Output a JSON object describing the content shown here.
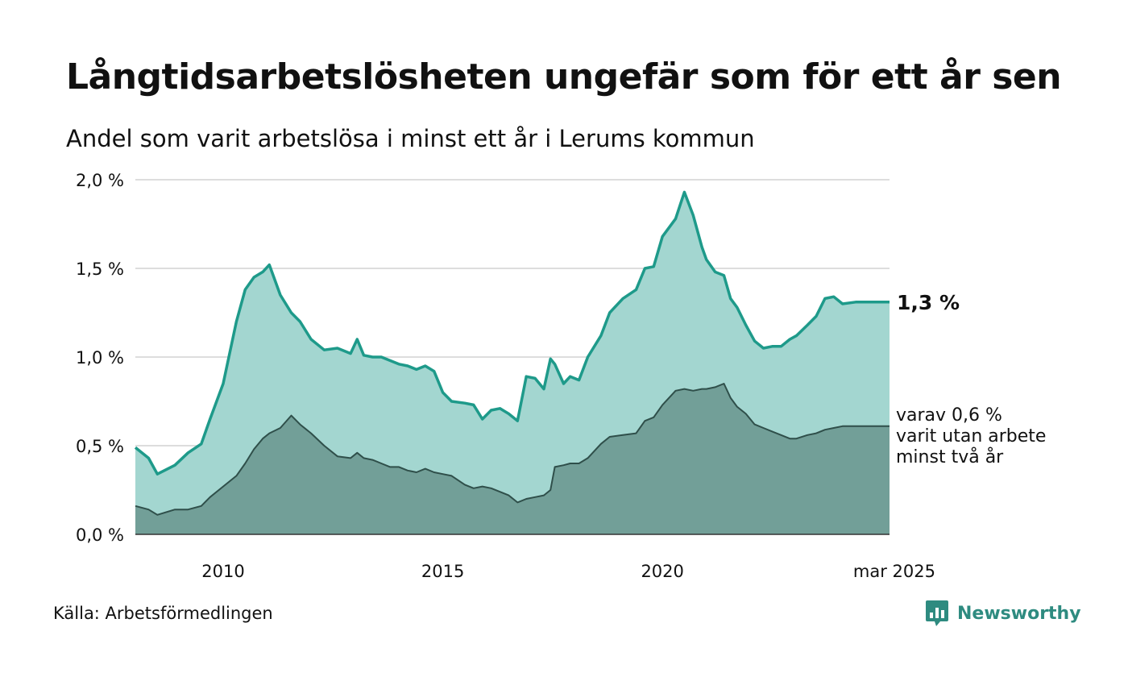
{
  "title": "Långtidsarbetslösheten ungefär som för ett år sen",
  "subtitle": "Andel som varit arbetslösa i minst ett år i Lerums kommun",
  "source": "Källa: Arbetsförmedlingen",
  "brand": {
    "name": "Newsworthy",
    "icon": "newsworthy-logo-icon"
  },
  "colors": {
    "area_total": "#a3d6d0",
    "line_total": "#1e9a8a",
    "area_two_years": "#729f98",
    "line_two_years": "#2f4f4a",
    "grid": "#dddddd",
    "brand": "#2e8b80"
  },
  "chart_data": {
    "type": "area",
    "x_range": [
      2008.0,
      2025.17
    ],
    "ylim": [
      0,
      2.0
    ],
    "y_ticks": [
      0,
      0.5,
      1.0,
      1.5,
      2.0
    ],
    "y_tick_labels": [
      "0,0 %",
      "0,5 %",
      "1,0 %",
      "1,5 %",
      "2,0 %"
    ],
    "x_ticks": [
      2010,
      2015,
      2020,
      2025.17
    ],
    "x_tick_labels": [
      "2010",
      "2015",
      "2020",
      "mar 2025"
    ],
    "grid": true,
    "annotations": {
      "total_end": "1,3 %",
      "two_years_line1": "varav 0,6 %",
      "two_years_line2": "varit utan arbete",
      "two_years_line3": "minst två år"
    },
    "series": [
      {
        "key": "total",
        "x": [
          2008.0,
          2008.3,
          2008.5,
          2008.9,
          2009.2,
          2009.5,
          2009.7,
          2010.0,
          2010.3,
          2010.5,
          2010.7,
          2010.9,
          2011.05,
          2011.3,
          2011.55,
          2011.75,
          2012.0,
          2012.3,
          2012.6,
          2012.9,
          2013.05,
          2013.2,
          2013.4,
          2013.6,
          2013.8,
          2014.0,
          2014.2,
          2014.4,
          2014.6,
          2014.8,
          2015.0,
          2015.2,
          2015.5,
          2015.7,
          2015.9,
          2016.1,
          2016.3,
          2016.5,
          2016.7,
          2016.9,
          2017.1,
          2017.3,
          2017.45,
          2017.55,
          2017.75,
          2017.9,
          2018.1,
          2018.3,
          2018.6,
          2018.8,
          2019.1,
          2019.4,
          2019.6,
          2019.8,
          2020.0,
          2020.3,
          2020.5,
          2020.7,
          2020.9,
          2021.0,
          2021.2,
          2021.4,
          2021.55,
          2021.7,
          2021.9,
          2022.1,
          2022.3,
          2022.5,
          2022.7,
          2022.9,
          2023.05,
          2023.3,
          2023.5,
          2023.7,
          2023.9,
          2024.1,
          2024.4,
          2024.6,
          2024.8,
          2024.95,
          2025.05,
          2025.17
        ],
        "values": [
          0.49,
          0.43,
          0.34,
          0.39,
          0.46,
          0.51,
          0.65,
          0.85,
          1.2,
          1.38,
          1.45,
          1.48,
          1.52,
          1.35,
          1.25,
          1.2,
          1.1,
          1.04,
          1.05,
          1.02,
          1.1,
          1.01,
          1.0,
          1.0,
          0.98,
          0.96,
          0.95,
          0.93,
          0.95,
          0.92,
          0.8,
          0.75,
          0.74,
          0.73,
          0.65,
          0.7,
          0.71,
          0.68,
          0.64,
          0.89,
          0.88,
          0.82,
          0.99,
          0.96,
          0.85,
          0.89,
          0.87,
          1.0,
          1.12,
          1.25,
          1.33,
          1.38,
          1.5,
          1.51,
          1.68,
          1.78,
          1.93,
          1.8,
          1.62,
          1.55,
          1.48,
          1.46,
          1.33,
          1.28,
          1.18,
          1.09,
          1.05,
          1.06,
          1.06,
          1.1,
          1.12,
          1.18,
          1.23,
          1.33,
          1.34,
          1.3,
          1.31,
          1.31,
          1.31,
          1.31,
          1.31,
          1.31
        ]
      },
      {
        "key": "two_years",
        "x": [
          2008.0,
          2008.3,
          2008.5,
          2008.9,
          2009.2,
          2009.5,
          2009.7,
          2010.0,
          2010.3,
          2010.5,
          2010.7,
          2010.9,
          2011.05,
          2011.3,
          2011.55,
          2011.75,
          2012.0,
          2012.3,
          2012.6,
          2012.9,
          2013.05,
          2013.2,
          2013.4,
          2013.6,
          2013.8,
          2014.0,
          2014.2,
          2014.4,
          2014.6,
          2014.8,
          2015.0,
          2015.2,
          2015.5,
          2015.7,
          2015.9,
          2016.1,
          2016.3,
          2016.5,
          2016.7,
          2016.9,
          2017.1,
          2017.3,
          2017.45,
          2017.55,
          2017.75,
          2017.9,
          2018.1,
          2018.3,
          2018.6,
          2018.8,
          2019.1,
          2019.4,
          2019.6,
          2019.8,
          2020.0,
          2020.3,
          2020.5,
          2020.7,
          2020.9,
          2021.0,
          2021.2,
          2021.4,
          2021.55,
          2021.7,
          2021.9,
          2022.1,
          2022.3,
          2022.5,
          2022.7,
          2022.9,
          2023.05,
          2023.3,
          2023.5,
          2023.7,
          2023.9,
          2024.1,
          2024.4,
          2024.6,
          2024.8,
          2024.95,
          2025.05,
          2025.17
        ],
        "values": [
          0.16,
          0.14,
          0.11,
          0.14,
          0.14,
          0.16,
          0.21,
          0.27,
          0.33,
          0.4,
          0.48,
          0.54,
          0.57,
          0.6,
          0.67,
          0.62,
          0.57,
          0.5,
          0.44,
          0.43,
          0.46,
          0.43,
          0.42,
          0.4,
          0.38,
          0.38,
          0.36,
          0.35,
          0.37,
          0.35,
          0.34,
          0.33,
          0.28,
          0.26,
          0.27,
          0.26,
          0.24,
          0.22,
          0.18,
          0.2,
          0.21,
          0.22,
          0.25,
          0.38,
          0.39,
          0.4,
          0.4,
          0.43,
          0.51,
          0.55,
          0.56,
          0.57,
          0.64,
          0.66,
          0.73,
          0.81,
          0.82,
          0.81,
          0.82,
          0.82,
          0.83,
          0.85,
          0.77,
          0.72,
          0.68,
          0.62,
          0.6,
          0.58,
          0.56,
          0.54,
          0.54,
          0.56,
          0.57,
          0.59,
          0.6,
          0.61,
          0.61,
          0.61,
          0.61,
          0.61,
          0.61,
          0.61
        ]
      }
    ]
  }
}
